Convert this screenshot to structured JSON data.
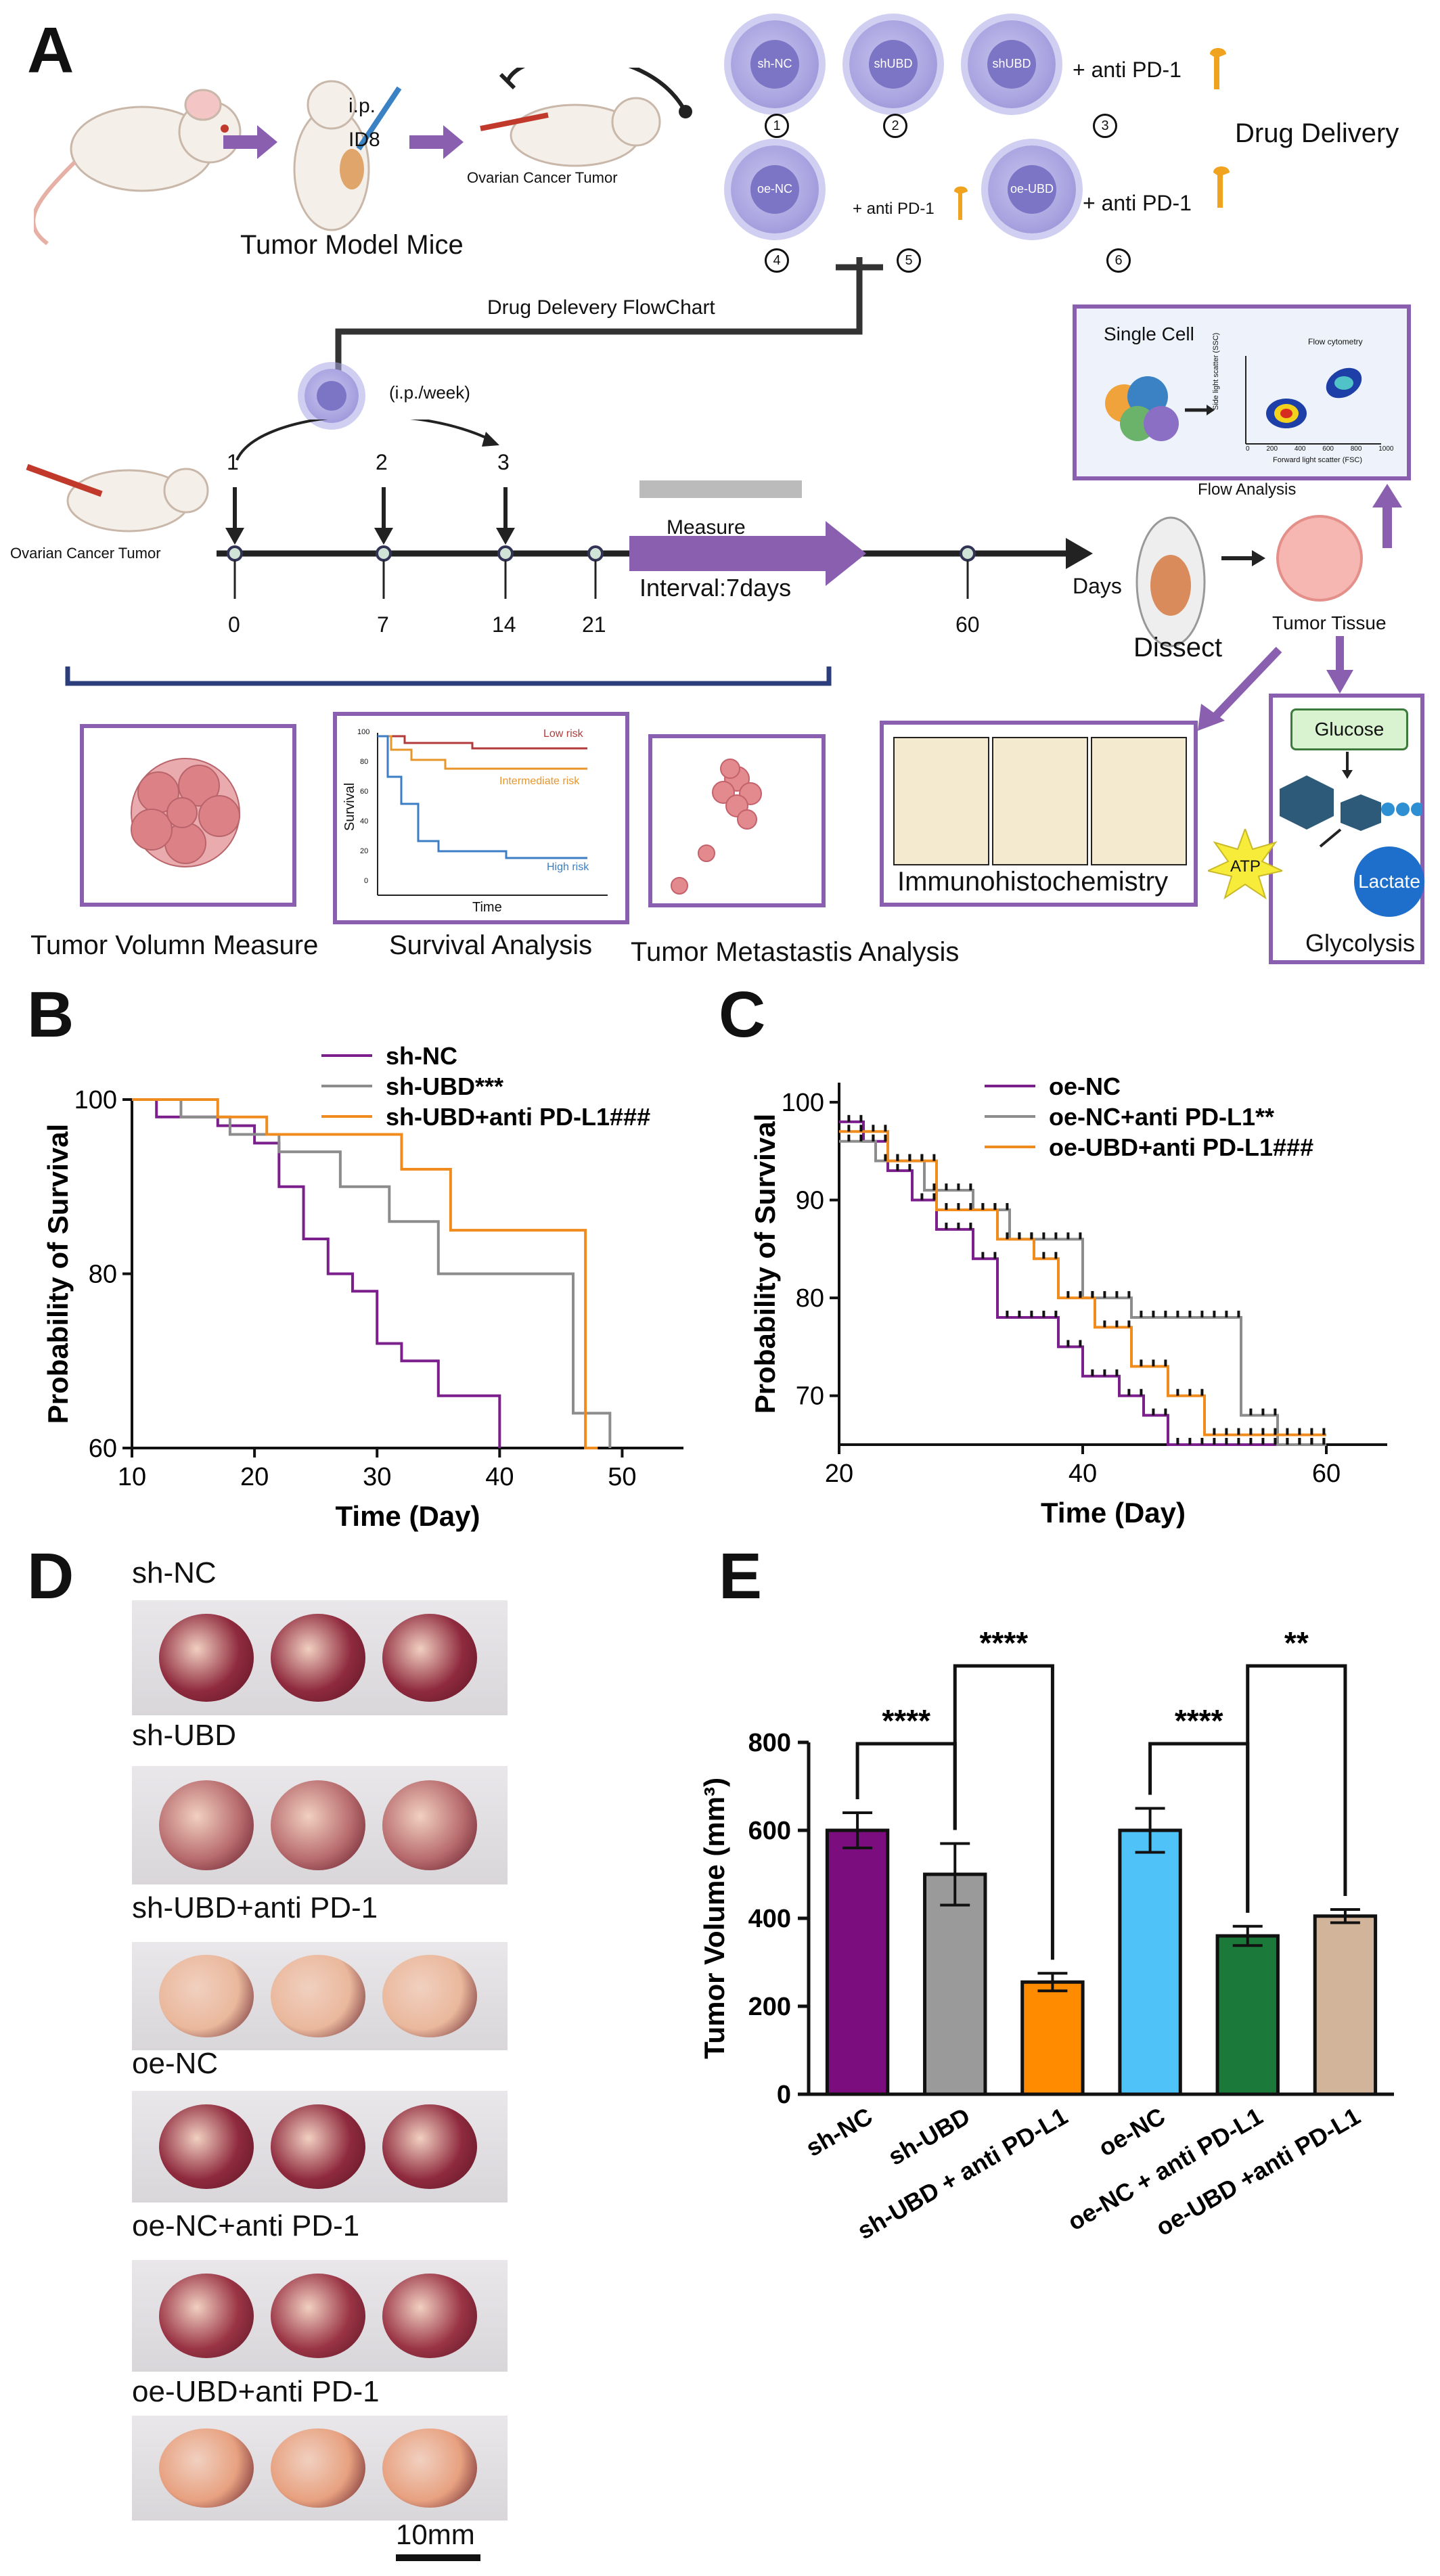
{
  "panels": {
    "A": "A",
    "B": "B",
    "C": "C",
    "D": "D",
    "E": "E"
  },
  "panelA": {
    "ip": "i.p.",
    "id8": "ID8",
    "ovarian_tumor_top": "Ovarian Cancer Tumor",
    "tumor_model_mice": "Tumor Model Mice",
    "cells": [
      {
        "label": "sh-NC",
        "num": "1"
      },
      {
        "label": "shUBD",
        "num": "2"
      },
      {
        "label": "shUBD",
        "num": "3"
      },
      {
        "label": "oe-NC",
        "num": "4"
      },
      {
        "label": "oe-UBD",
        "num": "6"
      }
    ],
    "anti_pd1": "+ anti PD-1",
    "num5": "5",
    "drug_delivery": "Drug Delivery",
    "flowchart_title": "Drug Delevery FlowChart",
    "ip_week": "(i.p./week)",
    "dose_numbers": [
      "1",
      "2",
      "3"
    ],
    "ovarian_tumor_left": "Ovarian Cancer Tumor",
    "timeline_ticks": [
      "0",
      "7",
      "14",
      "21",
      "60"
    ],
    "measure": "Measure",
    "interval": "Interval:7days",
    "days": "Days",
    "dissect": "Dissect",
    "tumor_tissue": "Tumor Tissue",
    "single_cell": "Single Cell",
    "flow_cytometry": "Flow cytometry",
    "flow_axis_x": "Forward light scatter (FSC)",
    "flow_axis_y": "Side light scatter (SSC)",
    "flow_ticks": [
      "0",
      "200",
      "400",
      "600",
      "800",
      "1000"
    ],
    "flow_analysis": "Flow Analysis",
    "tumor_volume_measure": "Tumor Volumn Measure",
    "survival_analysis": "Survival Analysis",
    "km_low": "Low risk",
    "km_inter": "Intermediate risk",
    "km_high": "High risk",
    "km_ylabel": "Survival",
    "km_xlabel": "Time",
    "km_yticks": [
      "100",
      "80",
      "60",
      "40",
      "20",
      "0"
    ],
    "metastasis": "Tumor Metastastis Analysis",
    "ihc": "Immunohistochemistry",
    "glucose": "Glucose",
    "atp": "ATP",
    "lactate": "Lactate",
    "glycolysis": "Glycolysis",
    "colors": {
      "purple": "#8a5fb0",
      "cell": "#a9a3e0"
    }
  },
  "panelD": {
    "groups": [
      "sh-NC",
      "sh-UBD",
      "sh-UBD+anti PD-1",
      "oe-NC",
      "oe-NC+anti PD-1",
      "oe-UBD+anti PD-1"
    ],
    "scale": "10mm"
  },
  "chart_data": [
    {
      "id": "B",
      "type": "line",
      "xlabel": "Time (Day)",
      "ylabel": "Probability of Survival",
      "xlim": [
        10,
        55
      ],
      "ylim": [
        60,
        100
      ],
      "xticks": [
        10,
        20,
        30,
        40,
        50
      ],
      "yticks": [
        60,
        80,
        100
      ],
      "legend_position": "top",
      "series": [
        {
          "name": "sh-NC",
          "color": "#7b1f8c",
          "x": [
            10,
            12,
            12,
            17,
            17,
            20,
            20,
            22,
            22,
            24,
            24,
            26,
            26,
            28,
            28,
            30,
            30,
            32,
            32,
            35,
            35,
            40,
            40
          ],
          "y": [
            100,
            100,
            98,
            98,
            97,
            97,
            95,
            95,
            90,
            90,
            84,
            84,
            80,
            80,
            78,
            78,
            72,
            72,
            70,
            70,
            66,
            66,
            60
          ]
        },
        {
          "name": "sh-UBD***",
          "color": "#8c8c8c",
          "x": [
            10,
            14,
            14,
            18,
            18,
            22,
            22,
            27,
            27,
            31,
            31,
            35,
            35,
            46,
            46,
            49,
            49
          ],
          "y": [
            100,
            100,
            98,
            98,
            96,
            96,
            94,
            94,
            90,
            90,
            86,
            86,
            80,
            80,
            64,
            64,
            60
          ]
        },
        {
          "name": "sh-UBD+anti PD-L1###",
          "color": "#f08c1e",
          "x": [
            10,
            17,
            17,
            21,
            21,
            32,
            32,
            36,
            36,
            47,
            47,
            48
          ],
          "y": [
            100,
            100,
            98,
            98,
            96,
            96,
            92,
            92,
            85,
            85,
            60,
            60
          ]
        }
      ]
    },
    {
      "id": "C",
      "type": "line",
      "xlabel": "Time (Day)",
      "ylabel": "Probability of Survival",
      "xlim": [
        20,
        65
      ],
      "ylim": [
        65,
        102
      ],
      "xticks": [
        20,
        40,
        60
      ],
      "yticks": [
        70,
        80,
        90,
        100
      ],
      "legend_position": "top",
      "series": [
        {
          "name": "oe-NC",
          "color": "#7b1f8c",
          "x": [
            20,
            22,
            22,
            24,
            24,
            26,
            26,
            28,
            28,
            31,
            31,
            33,
            33,
            38,
            38,
            40,
            40,
            43,
            43,
            45,
            45,
            47,
            47,
            60
          ],
          "y": [
            98,
            98,
            96,
            96,
            93,
            93,
            90,
            90,
            87,
            87,
            84,
            84,
            78,
            78,
            75,
            75,
            72,
            72,
            70,
            70,
            68,
            68,
            65,
            65
          ]
        },
        {
          "name": "oe-NC+anti PD-L1**",
          "color": "#8c8c8c",
          "x": [
            20,
            23,
            23,
            27,
            27,
            31,
            31,
            34,
            34,
            40,
            40,
            44,
            44,
            53,
            53,
            56,
            56,
            60
          ],
          "y": [
            96,
            96,
            94,
            94,
            91,
            91,
            89,
            89,
            86,
            86,
            80,
            80,
            78,
            78,
            68,
            68,
            65,
            65
          ]
        },
        {
          "name": "oe-UBD+anti PD-L1###",
          "color": "#f08c1e",
          "x": [
            20,
            24,
            24,
            28,
            28,
            33,
            33,
            36,
            36,
            38,
            38,
            41,
            41,
            44,
            44,
            47,
            47,
            50,
            50,
            60
          ],
          "y": [
            97,
            97,
            94,
            94,
            89,
            89,
            86,
            86,
            84,
            84,
            80,
            80,
            77,
            77,
            73,
            73,
            70,
            70,
            66,
            66
          ]
        }
      ]
    },
    {
      "id": "E",
      "type": "bar",
      "ylabel": "Tumor Volume (mm³)",
      "ylim": [
        0,
        800
      ],
      "yticks": [
        0,
        200,
        400,
        600,
        800
      ],
      "categories": [
        "sh-NC",
        "sh-UBD",
        "sh-UBD + anti PD-L1",
        "oe-NC",
        "oe-NC + anti PD-L1",
        "oe-UBD +anti PD-L1"
      ],
      "values": [
        600,
        500,
        255,
        600,
        360,
        405
      ],
      "errors": [
        40,
        70,
        20,
        50,
        22,
        15
      ],
      "colors": [
        "#7b0d7e",
        "#9a9a9a",
        "#ff8c00",
        "#4fc3f7",
        "#1b7a3a",
        "#d2b49a"
      ],
      "significance": [
        {
          "from": 0,
          "to": 1,
          "label": "****"
        },
        {
          "from": 1,
          "to": 2,
          "label": "****"
        },
        {
          "from": 3,
          "to": 4,
          "label": "****"
        },
        {
          "from": 4,
          "to": 5,
          "label": "**"
        }
      ]
    }
  ]
}
